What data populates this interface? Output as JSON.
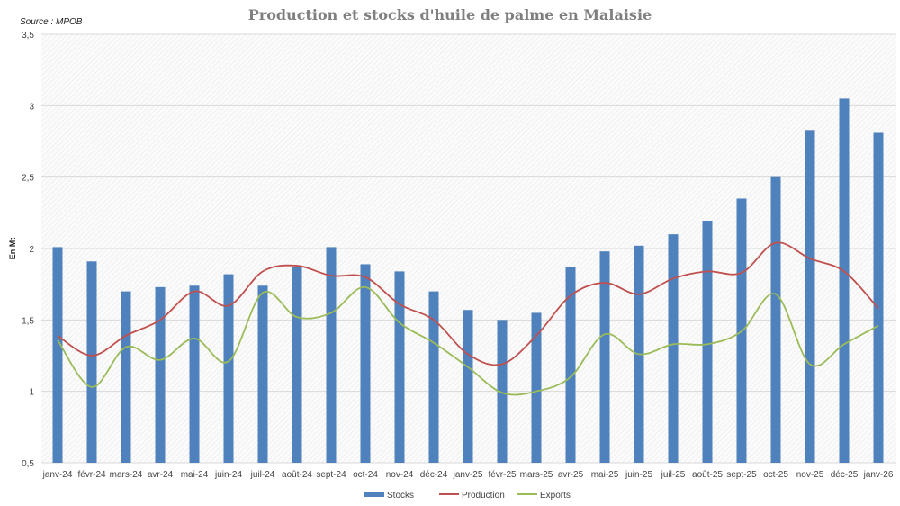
{
  "chart_data": {
    "type": "bar",
    "title": "Production et stocks d'huile de palme en Malaisie",
    "source": "Source : MPOB",
    "ylabel": "En Mt",
    "xlabel": "",
    "ylim": [
      0.5,
      3.5
    ],
    "yticks": [
      "0,5",
      "1",
      "1,5",
      "2",
      "2,5",
      "3",
      "3,5"
    ],
    "grid": true,
    "legend": "bottom",
    "categories": [
      "janv-24",
      "févr-24",
      "mars-24",
      "avr-24",
      "mai-24",
      "juin-24",
      "juil-24",
      "août-24",
      "sept-24",
      "oct-24",
      "nov-24",
      "déc-24",
      "janv-25",
      "févr-25",
      "mars-25",
      "avr-25",
      "mai-25",
      "juin-25",
      "juil-25",
      "août-25",
      "sept-25",
      "oct-25",
      "nov-25",
      "déc-25",
      "janv-26"
    ],
    "series": [
      {
        "name": "Stocks",
        "type": "bar",
        "color": "#4f81bd",
        "values": [
          2.01,
          1.91,
          1.7,
          1.73,
          1.74,
          1.82,
          1.74,
          1.87,
          2.01,
          1.89,
          1.84,
          1.7,
          1.57,
          1.5,
          1.55,
          1.87,
          1.98,
          2.02,
          2.1,
          2.19,
          2.35,
          2.5,
          2.83,
          3.05,
          2.81
        ]
      },
      {
        "name": "Production",
        "type": "line",
        "color": "#c0504d",
        "values": [
          1.39,
          1.25,
          1.39,
          1.5,
          1.7,
          1.6,
          1.84,
          1.88,
          1.81,
          1.8,
          1.61,
          1.5,
          1.26,
          1.19,
          1.39,
          1.67,
          1.76,
          1.68,
          1.79,
          1.84,
          1.83,
          2.04,
          1.93,
          1.84,
          1.58
        ]
      },
      {
        "name": "Exports",
        "type": "line",
        "color": "#9bbb59",
        "values": [
          1.36,
          1.03,
          1.31,
          1.22,
          1.37,
          1.21,
          1.69,
          1.52,
          1.55,
          1.73,
          1.48,
          1.34,
          1.17,
          0.99,
          1.0,
          1.1,
          1.4,
          1.26,
          1.33,
          1.33,
          1.42,
          1.68,
          1.19,
          1.33,
          1.46
        ]
      }
    ]
  }
}
